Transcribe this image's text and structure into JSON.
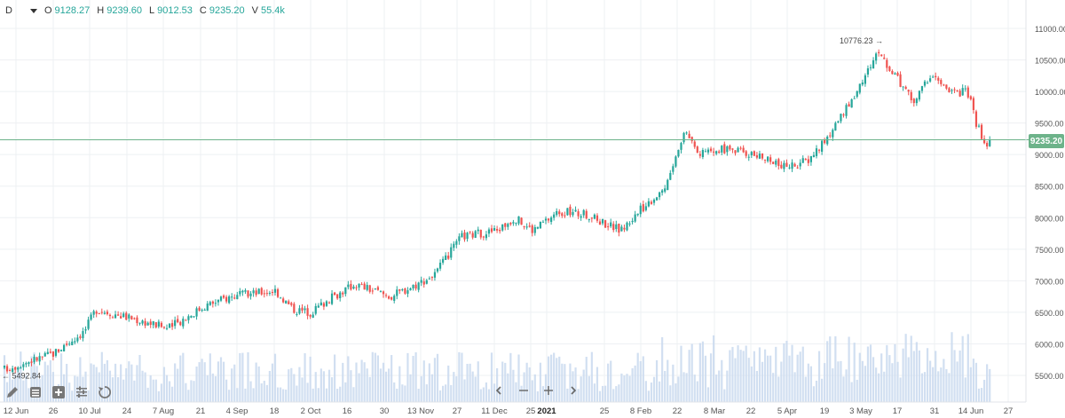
{
  "header": {
    "interval": "D",
    "ohlc": [
      {
        "key": "O",
        "value": "9128.27"
      },
      {
        "key": "H",
        "value": "9239.60"
      },
      {
        "key": "L",
        "value": "9012.53"
      },
      {
        "key": "C",
        "value": "9235.20"
      },
      {
        "key": "V",
        "value": "55.4k"
      }
    ]
  },
  "toolbar": {
    "left_icons": [
      "pencil-icon",
      "list-icon",
      "add-indicator-icon",
      "settings-sliders-icon",
      "reset-icon"
    ],
    "nav_icons": [
      "chevron-left-icon",
      "zoom-out-icon",
      "zoom-in-icon",
      "chevron-right-icon"
    ]
  },
  "colors": {
    "up": "#26a69a",
    "down": "#ef5350",
    "volume": "#c9d9ee",
    "priceLine": "#6db38a",
    "grid": "#eef0f3"
  },
  "chart_data": {
    "type": "candlestick",
    "y_ticks": [
      "11000.00",
      "10500.00",
      "10000.00",
      "9500.00",
      "9000.00",
      "8500.00",
      "8000.00",
      "7500.00",
      "7000.00",
      "6500.00",
      "6000.00",
      "5500.00"
    ],
    "ylim": [
      5300,
      11200
    ],
    "x_ticks": [
      "12 Jun",
      "26",
      "10 Jul",
      "24",
      "7 Aug",
      "21",
      "4 Sep",
      "18",
      "2 Oct",
      "16",
      "30",
      "13 Nov",
      "27",
      "11 Dec",
      "25",
      "2021",
      "25",
      "8 Feb",
      "22",
      "8 Mar",
      "22",
      "5 Apr",
      "19",
      "3 May",
      "17",
      "31",
      "14 Jun",
      "27"
    ],
    "bold_tick": "2021",
    "last_price": "9235.20",
    "high_marker": {
      "label": "10776.23",
      "value": 10776.23
    },
    "low_marker": {
      "label": "5492.84",
      "value": 5492.84
    },
    "anchors": [
      {
        "x": 5,
        "v": 5600
      },
      {
        "x": 60,
        "v": 5850
      },
      {
        "x": 95,
        "v": 6200
      },
      {
        "x": 108,
        "v": 6550
      },
      {
        "x": 150,
        "v": 6400
      },
      {
        "x": 190,
        "v": 6250
      },
      {
        "x": 230,
        "v": 6600
      },
      {
        "x": 260,
        "v": 6750
      },
      {
        "x": 310,
        "v": 6850
      },
      {
        "x": 330,
        "v": 6550
      },
      {
        "x": 350,
        "v": 6500
      },
      {
        "x": 370,
        "v": 6700
      },
      {
        "x": 400,
        "v": 6950
      },
      {
        "x": 440,
        "v": 6750
      },
      {
        "x": 470,
        "v": 6950
      },
      {
        "x": 490,
        "v": 7100
      },
      {
        "x": 520,
        "v": 7700
      },
      {
        "x": 560,
        "v": 7800
      },
      {
        "x": 580,
        "v": 8000
      },
      {
        "x": 600,
        "v": 7800
      },
      {
        "x": 630,
        "v": 8100
      },
      {
        "x": 660,
        "v": 8050
      },
      {
        "x": 700,
        "v": 7800
      },
      {
        "x": 720,
        "v": 8100
      },
      {
        "x": 750,
        "v": 8500
      },
      {
        "x": 765,
        "v": 9100
      },
      {
        "x": 772,
        "v": 9400
      },
      {
        "x": 790,
        "v": 9000
      },
      {
        "x": 820,
        "v": 9100
      },
      {
        "x": 850,
        "v": 9000
      },
      {
        "x": 880,
        "v": 8800
      },
      {
        "x": 910,
        "v": 8900
      },
      {
        "x": 940,
        "v": 9400
      },
      {
        "x": 965,
        "v": 10000
      },
      {
        "x": 990,
        "v": 10650
      },
      {
        "x": 1005,
        "v": 10300
      },
      {
        "x": 1030,
        "v": 9850
      },
      {
        "x": 1050,
        "v": 10300
      },
      {
        "x": 1070,
        "v": 9950
      },
      {
        "x": 1090,
        "v": 10000
      },
      {
        "x": 1100,
        "v": 9500
      },
      {
        "x": 1112,
        "v": 9100
      },
      {
        "x": 1116,
        "v": 9235
      }
    ]
  }
}
